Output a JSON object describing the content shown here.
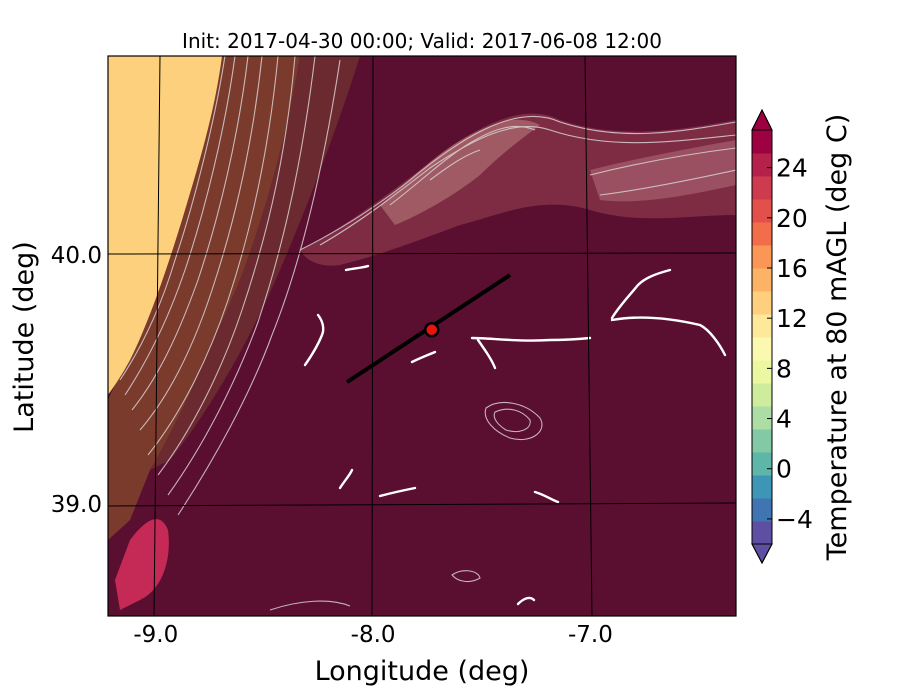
{
  "title": "Init: 2017-04-30 00:00; Valid: 2017-06-08 12:00",
  "x_axis": {
    "label": "Longitude (deg)",
    "ticks": [
      {
        "value": -9.0,
        "label": "-9.0"
      },
      {
        "value": -8.0,
        "label": "-8.0"
      },
      {
        "value": -7.0,
        "label": "-7.0"
      }
    ],
    "range": [
      -9.22,
      -6.33
    ]
  },
  "y_axis": {
    "label": "Latitude (deg)",
    "ticks": [
      {
        "value": 40.0,
        "label": "40.0"
      },
      {
        "value": 39.0,
        "label": "39.0"
      }
    ],
    "range": [
      38.55,
      40.8
    ]
  },
  "colorbar": {
    "label": "Temperature at 80 mAGL (deg C)",
    "range": [
      -6,
      27
    ],
    "ticks": [
      {
        "value": -4,
        "label": "−4"
      },
      {
        "value": 0,
        "label": "0"
      },
      {
        "value": 4,
        "label": "4"
      },
      {
        "value": 8,
        "label": "8"
      },
      {
        "value": 12,
        "label": "12"
      },
      {
        "value": 16,
        "label": "16"
      },
      {
        "value": 20,
        "label": "20"
      },
      {
        "value": 24,
        "label": "24"
      }
    ],
    "colors": [
      "#5e4fa2",
      "#3f75b3",
      "#3e96b6",
      "#5db6a7",
      "#82c9a5",
      "#abdda4",
      "#cfec9d",
      "#ecf7a1",
      "#fbf8b0",
      "#fee89a",
      "#fed07e",
      "#fdb365",
      "#fa9656",
      "#f26d4a",
      "#e34f4a",
      "#ce3a4e",
      "#b5214b",
      "#9e0142"
    ]
  },
  "map": {
    "sea_color": "#fdd07d",
    "coast_color": "#6b3a2a",
    "land_color": "#5a0f30",
    "highland_color": "#8a3a4e",
    "contour_color": "#d9d0d2"
  },
  "marker": {
    "lon": -7.73,
    "lat": 39.7,
    "color": "#e8150f"
  },
  "transect": {
    "start": {
      "lon": -8.12,
      "lat": 39.49
    },
    "end": {
      "lon": -7.37,
      "lat": 39.92
    }
  }
}
